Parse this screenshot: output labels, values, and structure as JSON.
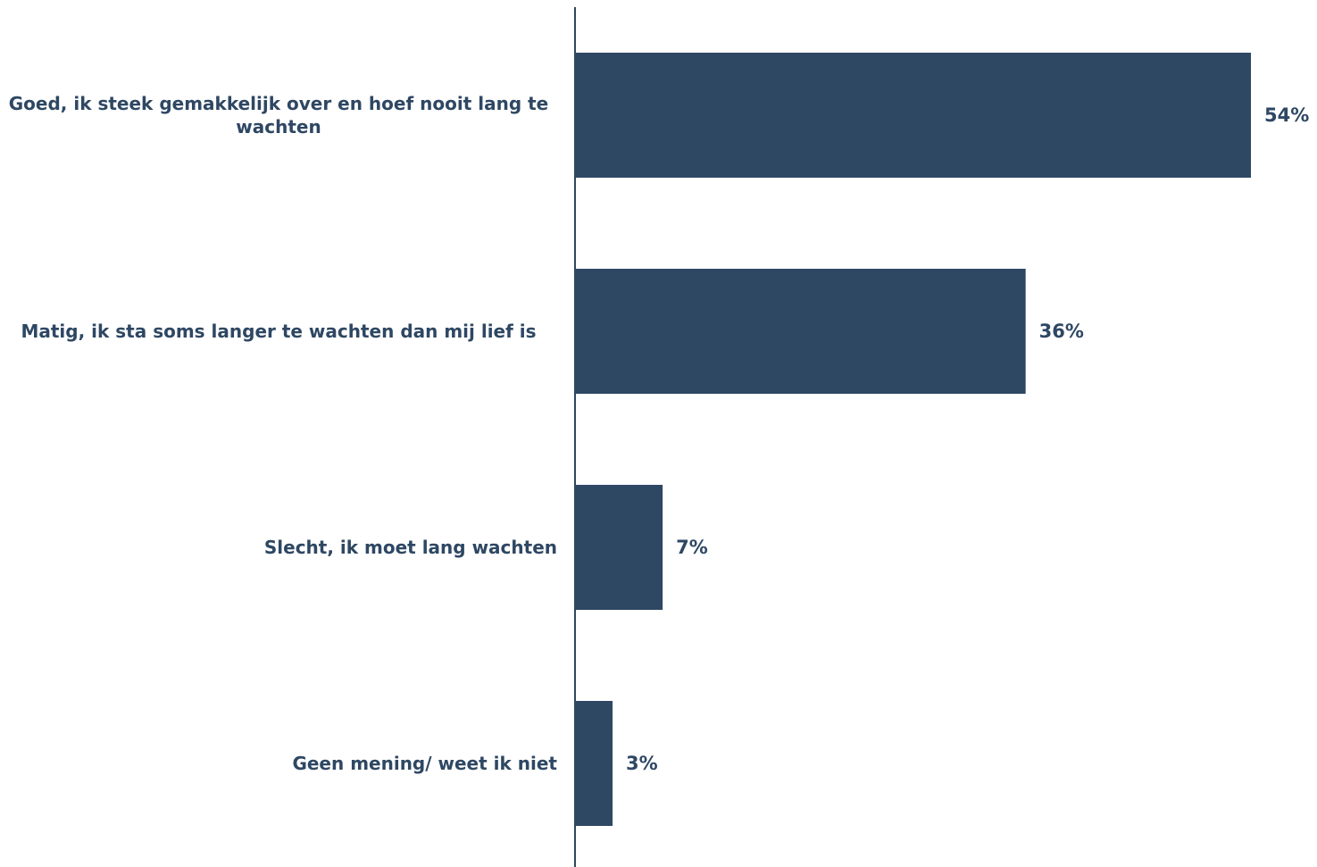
{
  "chart_data": {
    "type": "bar",
    "orientation": "horizontal",
    "categories": [
      "Goed, ik steek gemakkelijk over en hoef nooit lang te wachten",
      "Matig, ik sta soms langer te wachten dan mij lief is",
      "Slecht, ik moet lang wachten",
      "Geen mening/ weet ik niet"
    ],
    "values": [
      54,
      36,
      7,
      3
    ],
    "value_labels": [
      "54%",
      "36%",
      "7%",
      "3%"
    ],
    "unit": "%",
    "title": "",
    "xlabel": "",
    "ylabel": "",
    "xlim": [
      0,
      54
    ],
    "grid": false,
    "legend": "none",
    "colors": {
      "bar": "#2e4763",
      "axis": "#2e4763",
      "text": "#2e4763"
    }
  }
}
